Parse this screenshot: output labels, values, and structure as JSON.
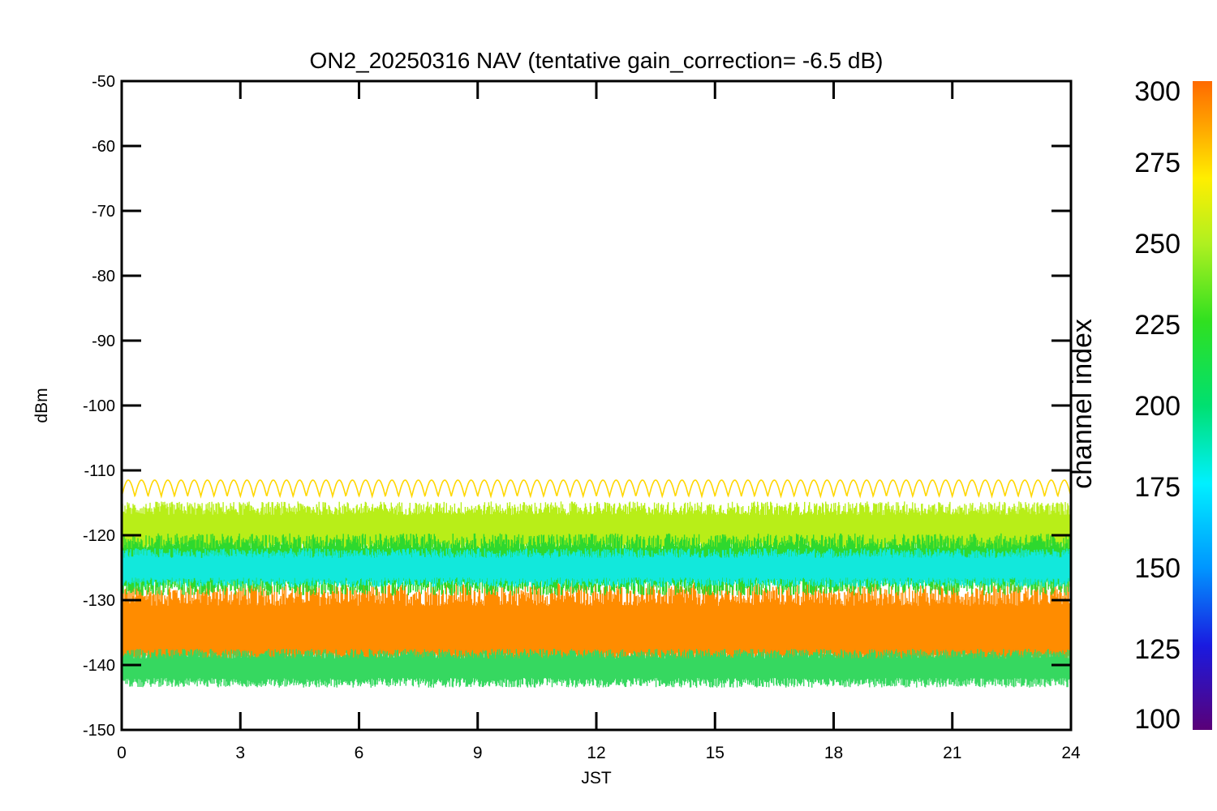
{
  "chart_data": {
    "type": "line",
    "title": "ON2_20250316 NAV (tentative gain_correction= -6.5 dB)",
    "xlabel": "JST",
    "ylabel": "dBm",
    "xlim": [
      0,
      24
    ],
    "ylim": [
      -150,
      -50
    ],
    "x_ticks": [
      "0",
      "3",
      "6",
      "9",
      "12",
      "15",
      "18",
      "21",
      "24"
    ],
    "y_ticks": [
      "-50",
      "-60",
      "-70",
      "-80",
      "-90",
      "-100",
      "-110",
      "-120",
      "-130",
      "-140",
      "-150"
    ],
    "grid": false,
    "colorbar": {
      "label": "channel index",
      "range": [
        100,
        300
      ],
      "ticks": [
        "100",
        "125",
        "150",
        "175",
        "200",
        "225",
        "250",
        "275",
        "300"
      ],
      "colormap": "rainbow"
    },
    "bands": [
      {
        "channel": 290,
        "center_dBm": -134.5,
        "spread_dBm": 6.0,
        "color": "#ff8c00"
      },
      {
        "channel": 265,
        "center_dBm": -119.0,
        "spread_dBm": 3.5,
        "color": "#b8ee18"
      },
      {
        "channel": 245,
        "center_dBm": -124.5,
        "spread_dBm": 4.0,
        "color": "#2ed82e"
      },
      {
        "channel": 190,
        "center_dBm": -125.0,
        "spread_dBm": 2.5,
        "color": "#12e8dc"
      },
      {
        "channel": 225,
        "center_dBm": -140.5,
        "spread_dBm": 2.5,
        "color": "#36d860"
      }
    ],
    "series": [
      {
        "channel": 275,
        "color": "#ffd700",
        "baseline_dBm": -114.0,
        "amplitude_dBm": 2.5,
        "cycles": 72
      }
    ]
  }
}
